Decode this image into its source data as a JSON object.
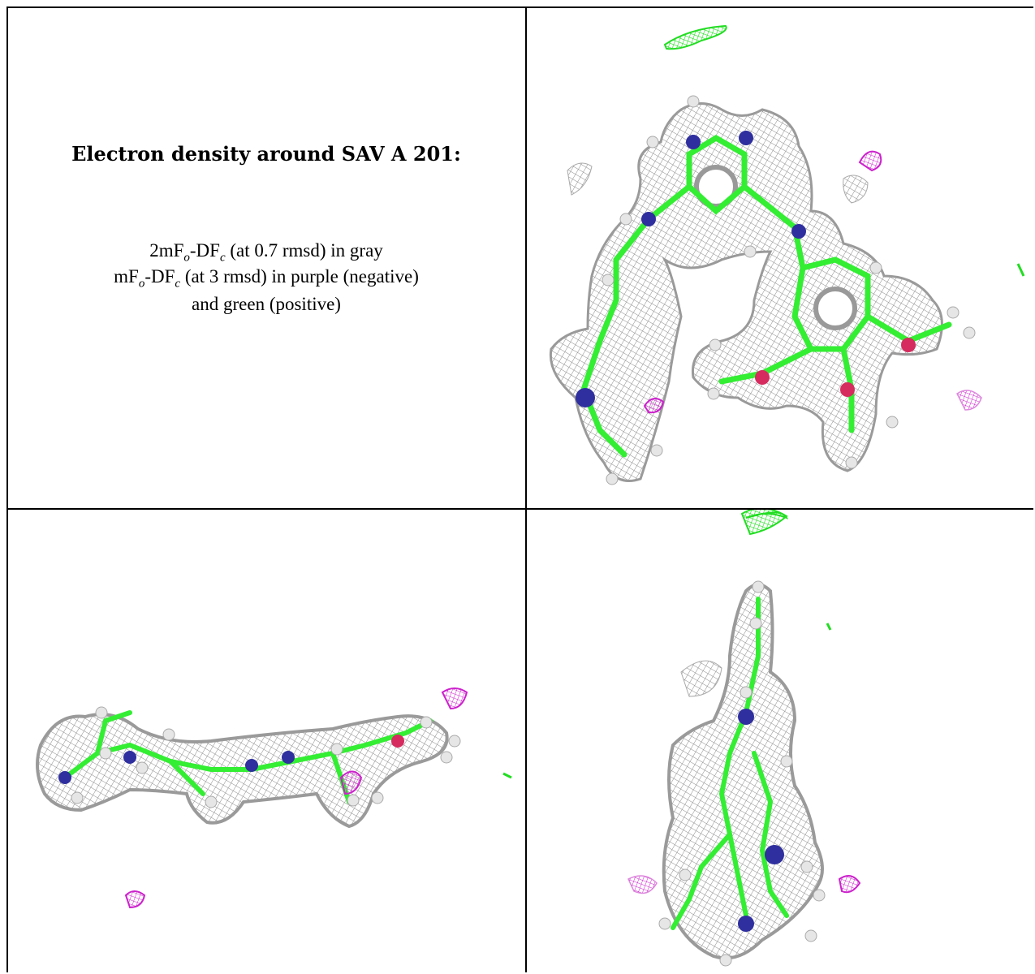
{
  "caption": {
    "title": "Electron density around SAV A 201:",
    "line1_pre": "2mF",
    "line1_sub1": "o",
    "line1_mid": "-DF",
    "line1_sub2": "c",
    "line1_post": " (at 0.7 rmsd) in gray",
    "line2_pre": "mF",
    "line2_sub1": "o",
    "line2_mid": "-DF",
    "line2_sub2": "c",
    "line2_post": " (at 3 rmsd) in purple (negative)",
    "line3": "and green (positive)"
  },
  "colors": {
    "mesh_gray": "#8c8c8c",
    "carbon_green": "#33ee33",
    "nitrogen_blue": "#2f2f9f",
    "oxygen_red": "#d62b5e",
    "hydrogen_white": "#e8e8e8",
    "negative_purple": "#cc22cc",
    "positive_green": "#22dd22"
  },
  "panels": [
    {
      "view": "top view (front)"
    },
    {
      "view": "side view (horizontal)"
    },
    {
      "view": "side view (vertical)"
    }
  ]
}
